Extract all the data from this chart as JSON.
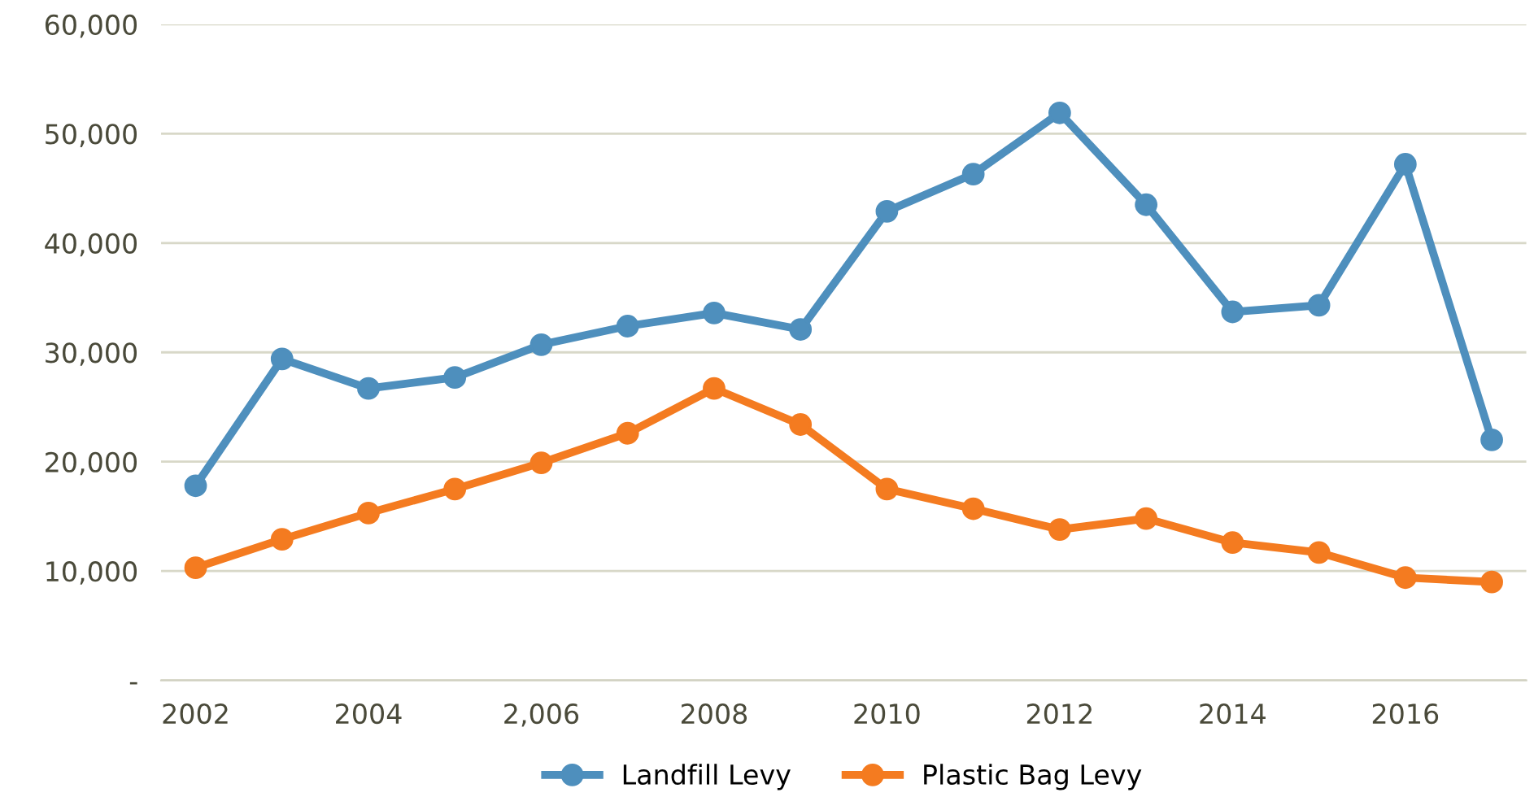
{
  "chart_data": {
    "type": "line",
    "x": [
      2002,
      2003,
      2004,
      2005,
      2006,
      2007,
      2008,
      2009,
      2010,
      2011,
      2012,
      2013,
      2014,
      2015,
      2016,
      2017
    ],
    "series": [
      {
        "name": "Landfill Levy",
        "color": "#4e8fbd",
        "values": [
          17800,
          29400,
          26700,
          27700,
          30700,
          32400,
          33600,
          32100,
          42900,
          46300,
          51900,
          43500,
          33700,
          34300,
          47200,
          22000
        ]
      },
      {
        "name": "Plastic Bag Levy",
        "color": "#f47b20",
        "values": [
          10300,
          12900,
          15300,
          17500,
          19900,
          22600,
          26700,
          23400,
          17500,
          15700,
          13800,
          14800,
          12600,
          11700,
          9400,
          9000
        ]
      }
    ],
    "xlim": [
      2001.6,
      2017.4
    ],
    "xticks": [
      2002,
      2004,
      {
        "value": 2006,
        "label": "2,006"
      },
      2008,
      2010,
      2012,
      2014,
      2016
    ],
    "ylim": [
      0,
      60000
    ],
    "yticks": [
      {
        "value": 0,
        "label": "-"
      },
      {
        "value": 10000,
        "label": "10,000"
      },
      {
        "value": 20000,
        "label": "20,000"
      },
      {
        "value": 30000,
        "label": "30,000"
      },
      {
        "value": 40000,
        "label": "40,000"
      },
      {
        "value": 50000,
        "label": "50,000"
      },
      {
        "value": 60000,
        "label": "60,000"
      }
    ],
    "grid": "y",
    "legend": "bottom",
    "marker": "circle",
    "line_style": "solid"
  }
}
